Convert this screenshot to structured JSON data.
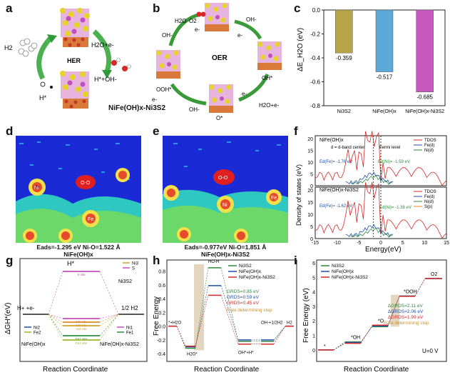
{
  "panels": {
    "a": "a",
    "b": "b",
    "c": "c",
    "d": "d",
    "e": "e",
    "f": "f",
    "g": "g",
    "h": "h",
    "i": "i"
  },
  "a": {
    "h2": "H2",
    "her": "HER",
    "h2o_e": "H2O+e-",
    "h_star_oh": "H*+OH-",
    "h_star": "H*"
  },
  "b": {
    "h2o": "H2O",
    "o2": "O2",
    "oer": "OER",
    "oh_minus": "OH-",
    "e_minus": "e-",
    "oh_star": "OH*",
    "ooh_star": "OOH*",
    "o_star": "O*",
    "h2o_e": "H2O+e-"
  },
  "ab_caption": "NiFe(OH)x-Ni3S2",
  "chart_c": {
    "type": "bar",
    "ylabel": "ΔE_H2O (eV)",
    "ylim": [
      -0.8,
      0.0
    ],
    "yticks": [
      0.0,
      -0.2,
      -0.4,
      -0.6,
      -0.8
    ],
    "yticklabels": [
      "0.0",
      "-0.2",
      "-0.4",
      "-0.6",
      "-0.8"
    ],
    "categories": [
      "Ni3S2",
      "NiFe(OH)x",
      "NiFe(OH)x-Ni3S2"
    ],
    "values": [
      -0.359,
      -0.517,
      -0.685
    ],
    "value_labels": [
      "-0.359",
      "-0.517",
      "-0.685"
    ],
    "colors": [
      "#b8a548",
      "#5aa9d6",
      "#c75bbd"
    ]
  },
  "d": {
    "eads": "Eads=-1.295 eV  Ni-O=1.522 Å",
    "material": "NiFe(OH)x",
    "atom_o": "O-O",
    "atom_ni": "Ni",
    "atom_fe": "Fe"
  },
  "e": {
    "eads": "Eads=-0.977eV  Ni-O=1.851 Å",
    "material": "NiFe(OH)x-Ni3S2",
    "atom_o": "O-O",
    "atom_ni": "Ni",
    "atom_fe": "Fe"
  },
  "chart_f": {
    "type": "line",
    "xlabel": "Energy(eV)",
    "ylabel": "Density of states (eV)",
    "xlim": [
      -15,
      15
    ],
    "xticks": [
      "-15",
      "-10",
      "-5",
      "0",
      "5",
      "10",
      "15"
    ],
    "top": {
      "title": "NiFe(OH)x",
      "legend": [
        "TDOS",
        "Fe(d)",
        "Ni(d)"
      ],
      "ed_fe": "Ed(Fe)= -1.76 eV",
      "ed_ni": "Ed(Ni)= -1.59 eV",
      "note": "d = d-band center",
      "fermi": "Fermi level",
      "yticks": [
        "0",
        "5",
        "10",
        "15",
        "20"
      ]
    },
    "bottom": {
      "title": "NiFe(OH)x-Ni3S2",
      "legend": [
        "TDOS",
        "Fe(d)",
        "Ni(d)",
        "S(p)"
      ],
      "ed_fe": "Ed(Fe)= -1.62 eV",
      "ed_ni": "Ed(Ni)= -1.38 eV",
      "yticks": [
        "0",
        "5",
        "10",
        "15",
        "20"
      ]
    }
  },
  "chart_g": {
    "type": "diagram",
    "ylabel": "ΔGH*(eV)",
    "xlabel": "Reaction Coordinate",
    "left_label": "H+ +e-",
    "right_label": "1/2 H2",
    "top_label": "H*",
    "legend_ni3s2": [
      "Ni3",
      "S"
    ],
    "ni3s2_label": "Ni3S2",
    "left_legend": [
      "Ni2",
      "Fe2"
    ],
    "left_material": "NiFe(OH)x",
    "right_legend": [
      "Ni1",
      "Fe1"
    ],
    "right_material": "NiFe(OH)x-Ni3S2",
    "sites": [
      "S site",
      "Ni1 site",
      "Ni2 site",
      "Ni3 site",
      "Fe1 site",
      "Fe2 site"
    ]
  },
  "chart_h": {
    "type": "line",
    "ylabel": "Free Energy",
    "xlabel": "Reaction Coordinate",
    "yticks": [
      "0.8",
      "0.6",
      "0.4",
      "0.2",
      "0.0",
      "-0.2",
      "-0.4"
    ],
    "legend": [
      "Ni3S2",
      "NiFe(OH)x",
      "NiFe(OH)x-Ni3S2"
    ],
    "colors": [
      "#2e8b3e",
      "#1f4fa8",
      "#d42a2a"
    ],
    "g_rds": [
      "GRDS=0.85 eV",
      "GRDS=0.59 eV",
      "GRDS=0.45 eV"
    ],
    "rds_note": "Rate determining step",
    "states": [
      "*+H2O",
      "H2O*",
      "HO-H",
      "OH*+H*",
      "OH-+1/2H2",
      "H2"
    ],
    "values": {
      "Ni3S2": [
        0,
        -0.32,
        0.85,
        -0.22,
        -0.22,
        0
      ],
      "NiFe(OH)x": [
        0,
        -0.3,
        0.59,
        -0.2,
        -0.2,
        0
      ],
      "NiFe(OH)x-Ni3S2": [
        0,
        -0.29,
        0.45,
        -0.26,
        -0.26,
        0
      ]
    }
  },
  "chart_i": {
    "type": "line",
    "ylabel": "Free Energy (eV)",
    "xlabel": "Reaction Coordinate",
    "yticks": [
      "6",
      "5",
      "4",
      "3",
      "2",
      "1",
      "0"
    ],
    "legend": [
      "Ni3S2",
      "NiFe(OH)x",
      "NiFe(OH)x-Ni3S2"
    ],
    "colors": [
      "#2e8b3e",
      "#1f4fa8",
      "#d42a2a"
    ],
    "states": [
      "*",
      "*OH",
      "*O",
      "*OOH",
      "O2"
    ],
    "dg_rds": [
      "ΔGRDS=2.11 eV",
      "ΔGRDS=2.06 eV",
      "ΔGRDS=1.99 eV"
    ],
    "rds_note": "Rate determining step",
    "u_label": "U=0 V",
    "values": {
      "Ni3S2": [
        0,
        0.55,
        1.6,
        3.71,
        4.92
      ],
      "NiFe(OH)x": [
        0,
        0.5,
        1.65,
        3.71,
        4.92
      ],
      "NiFe(OH)x-Ni3S2": [
        0,
        0.45,
        1.7,
        3.69,
        4.92
      ]
    }
  }
}
